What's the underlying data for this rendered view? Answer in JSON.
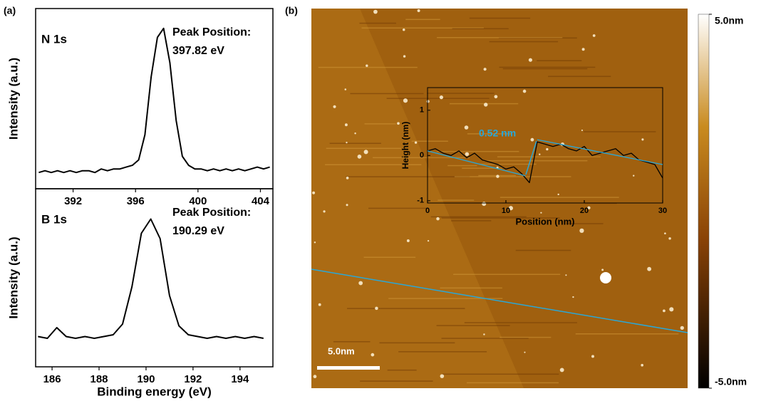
{
  "chart_data": [
    {
      "type": "line",
      "panel_label": "(a)",
      "title": "N 1s",
      "annotations": [
        "Peak Position:",
        "397.82 eV"
      ],
      "ylabel": "Intensity (a.u.)",
      "xlim": [
        389.6,
        404.8
      ],
      "xticks": [
        392,
        396,
        400,
        404
      ],
      "ylim": [
        0,
        100
      ],
      "color": "#000000",
      "x": [
        389.8,
        390.2,
        390.6,
        391.0,
        391.4,
        391.8,
        392.2,
        392.6,
        393.0,
        393.4,
        393.8,
        394.2,
        394.6,
        395.0,
        395.4,
        395.8,
        396.2,
        396.6,
        397.0,
        397.4,
        397.8,
        398.2,
        398.6,
        399.0,
        399.4,
        399.8,
        400.2,
        400.6,
        401.0,
        401.4,
        401.8,
        402.2,
        402.6,
        403.0,
        403.4,
        403.8,
        404.2,
        404.6
      ],
      "values": [
        9,
        10,
        9,
        10,
        9,
        10,
        9,
        10,
        10,
        9,
        11,
        10,
        11,
        11,
        12,
        13,
        16,
        30,
        62,
        84,
        89,
        70,
        38,
        18,
        13,
        11,
        11,
        10,
        11,
        10,
        11,
        10,
        11,
        10,
        11,
        12,
        11,
        12
      ]
    },
    {
      "type": "line",
      "title": "B 1s",
      "annotations": [
        "Peak Position:",
        "190.29 eV"
      ],
      "ylabel": "Intensity (a.u.)",
      "xlabel": "Binding energy (eV)",
      "xlim": [
        185.3,
        195.4
      ],
      "xticks": [
        186,
        188,
        190,
        192,
        194
      ],
      "ylim": [
        0,
        100
      ],
      "color": "#000000",
      "x": [
        185.4,
        185.8,
        186.2,
        186.6,
        187.0,
        187.4,
        187.8,
        188.2,
        188.6,
        189.0,
        189.4,
        189.8,
        190.2,
        190.6,
        191.0,
        191.4,
        191.8,
        192.2,
        192.6,
        193.0,
        193.4,
        193.8,
        194.2,
        194.6,
        195.0
      ],
      "values": [
        17,
        16,
        22,
        17,
        16,
        17,
        16,
        17,
        18,
        24,
        45,
        75,
        83,
        72,
        40,
        23,
        18,
        17,
        16,
        17,
        16,
        17,
        16,
        17,
        16
      ]
    },
    {
      "type": "image",
      "panel_label": "(b)",
      "xlim": [
        0,
        30
      ],
      "scale_bar": {
        "value": 5,
        "label": "5.0nm"
      },
      "zlim": [
        -5,
        5
      ],
      "zticks": [
        {
          "value": 5,
          "label": "5.0nm"
        },
        {
          "value": -5,
          "label": "-5.0nm"
        }
      ]
    },
    {
      "type": "line",
      "xlabel": "Position (nm)",
      "ylabel": "Height (nm)",
      "annotations": [
        "0.52 nm"
      ],
      "xlim": [
        0,
        30
      ],
      "xticks": [
        0,
        10,
        20,
        30
      ],
      "ylim": [
        -1.05,
        1.5
      ],
      "yticks": [
        -1,
        0,
        1
      ],
      "series": [
        {
          "color": "#000000",
          "x": [
            0,
            1,
            2,
            3,
            4,
            5,
            6,
            7,
            8,
            9,
            10,
            11,
            12,
            13,
            14,
            15,
            16,
            17,
            18,
            19,
            20,
            21,
            22,
            23,
            24,
            25,
            26,
            27,
            28,
            29,
            30
          ],
          "values": [
            0.1,
            0.15,
            0.05,
            0.0,
            0.1,
            -0.05,
            0.05,
            -0.1,
            -0.15,
            -0.2,
            -0.3,
            -0.25,
            -0.4,
            -0.6,
            0.3,
            0.25,
            0.2,
            0.25,
            0.15,
            0.1,
            0.2,
            0.0,
            0.05,
            0.1,
            0.15,
            0.0,
            0.05,
            -0.1,
            -0.15,
            -0.2,
            -0.5
          ]
        },
        {
          "color": "#2aa7d6",
          "x": [
            0,
            12.5,
            13.2,
            14,
            30
          ],
          "values": [
            0.1,
            -0.45,
            null,
            0.35,
            -0.2
          ]
        }
      ]
    }
  ]
}
